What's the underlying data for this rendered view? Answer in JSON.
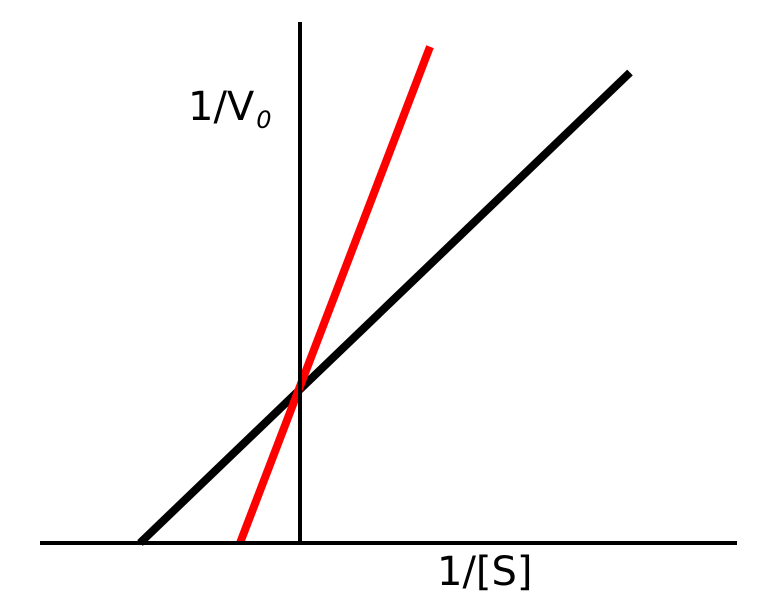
{
  "chart_data": {
    "type": "line",
    "xlabel": "1/[S]",
    "ylabel": "1/V",
    "ylabel_subscript": "0",
    "xlim": [
      -0.32,
      0.88
    ],
    "ylim": [
      0,
      1.0
    ],
    "grid": false,
    "series": [
      {
        "color": "#000000",
        "x": [
          -0.32,
          0.66
        ],
        "y": [
          0.0,
          0.91
        ]
      },
      {
        "color": "#ff0000",
        "x": [
          -0.12,
          0.26
        ],
        "y": [
          0.0,
          0.96
        ]
      }
    ]
  }
}
